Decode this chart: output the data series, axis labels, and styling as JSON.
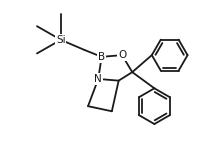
{
  "background_color": "#ffffff",
  "line_color": "#1a1a1a",
  "line_width": 1.3,
  "font_size_atom": 7.5,
  "fig_width": 2.22,
  "fig_height": 1.63,
  "dpi": 100,
  "xlim": [
    -0.1,
    1.05
  ],
  "ylim": [
    0.1,
    1.05
  ]
}
